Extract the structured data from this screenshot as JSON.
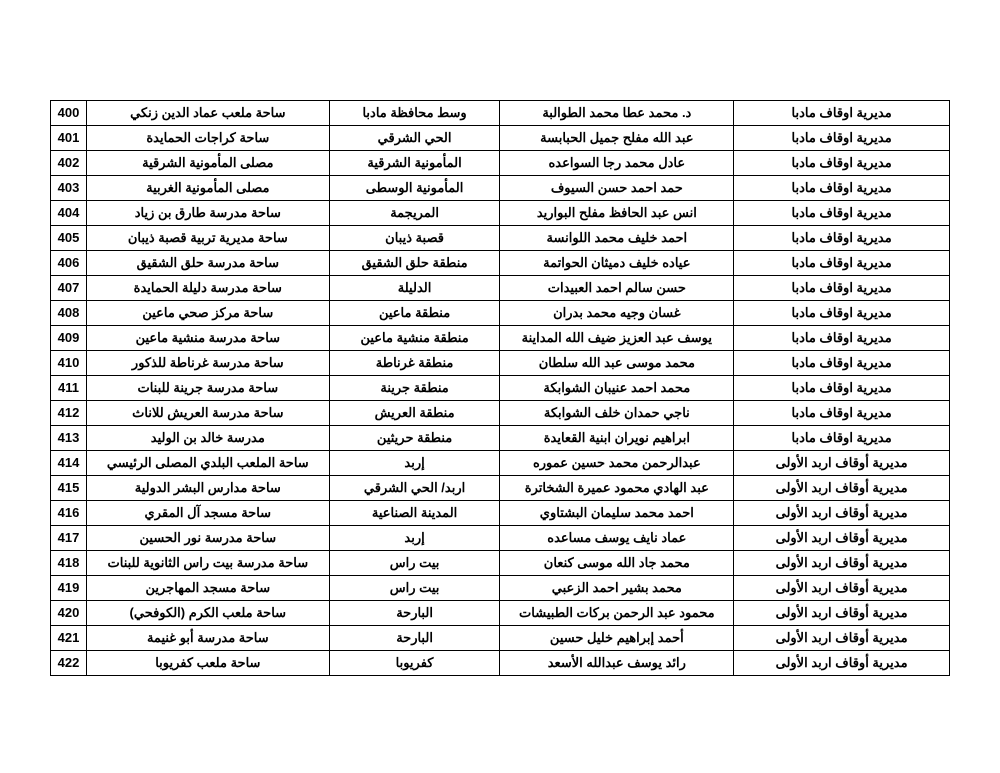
{
  "table": {
    "text_color": "#000000",
    "border_color": "#000000",
    "background_color": "#ffffff",
    "font_weight": "bold",
    "font_size_pt": 10,
    "column_widths_pct": [
      4,
      27,
      19,
      26,
      24
    ],
    "column_align": [
      "center",
      "center",
      "center",
      "center",
      "center"
    ],
    "rows": [
      {
        "id": "400",
        "c2": "ساحة ملعب عماد الدين زنكي",
        "c3": "وسط محافظة مادبا",
        "c4": "د. محمد عطا محمد الطوالبة",
        "c5": "مديرية اوقاف مادبا"
      },
      {
        "id": "401",
        "c2": "ساحة كراجات الحمايدة",
        "c3": "الحي الشرقي",
        "c4": "عبد الله مفلح  جميل الحبابسة",
        "c5": "مديرية اوقاف مادبا"
      },
      {
        "id": "402",
        "c2": "مصلى المأمونية الشرقية",
        "c3": "المأمونية الشرقية",
        "c4": "عادل محمد رجا السواعده",
        "c5": "مديرية اوقاف مادبا"
      },
      {
        "id": "403",
        "c2": "مصلى المأمونية الغربية",
        "c3": "المأمونية الوسطى",
        "c4": "حمد احمد حسن السيوف",
        "c5": "مديرية اوقاف مادبا"
      },
      {
        "id": "404",
        "c2": "ساحة مدرسة طارق بن زياد",
        "c3": "المريجمة",
        "c4": "انس عبد الحافظ  مفلح البواريد",
        "c5": "مديرية اوقاف مادبا"
      },
      {
        "id": "405",
        "c2": "ساحة مديرية تربية قصبة ذيبان",
        "c3": "قصبة ذيبان",
        "c4": "احمد خليف محمد اللوانسة",
        "c5": "مديرية اوقاف مادبا"
      },
      {
        "id": "406",
        "c2": "ساحة مدرسة حلق الشقيق",
        "c3": "منطقة حلق الشقيق",
        "c4": "عياده خليف دميثان الحواتمة",
        "c5": "مديرية اوقاف مادبا"
      },
      {
        "id": "407",
        "c2": "ساحة مدرسة دليلة الحمايدة",
        "c3": "الدليلة",
        "c4": "حسن سالم احمد العبيدات",
        "c5": "مديرية اوقاف مادبا"
      },
      {
        "id": "408",
        "c2": "ساحة مركز صحي ماعين",
        "c3": "منطقة ماعين",
        "c4": "غسان وجيه محمد بدران",
        "c5": "مديرية اوقاف مادبا"
      },
      {
        "id": "409",
        "c2": "ساحة مدرسة منشية ماعين",
        "c3": "منطقة منشية ماعين",
        "c4": "يوسف عبد العزيز ضيف الله المداينة",
        "c5": "مديرية اوقاف مادبا"
      },
      {
        "id": "410",
        "c2": "ساحة مدرسة غرناطة للذكور",
        "c3": "منطقة غرناطة",
        "c4": "محمد موسى  عبد الله سلطان",
        "c5": "مديرية اوقاف مادبا"
      },
      {
        "id": "411",
        "c2": "ساحة مدرسة جرينة للبنات",
        "c3": "منطقة جرينة",
        "c4": "محمد احمد عنيبان الشوابكة",
        "c5": "مديرية اوقاف مادبا"
      },
      {
        "id": "412",
        "c2": "ساحة مدرسة العريش للاناث",
        "c3": "منطقة العريش",
        "c4": "ناجي حمدان خلف الشوابكة",
        "c5": "مديرية اوقاف مادبا"
      },
      {
        "id": "413",
        "c2": "مدرسة خالد بن الوليد",
        "c3": "منطقة حريثين",
        "c4": "ابراهيم نويران ابنية القعايدة",
        "c5": "مديرية اوقاف مادبا"
      },
      {
        "id": "414",
        "c2": "ساحة الملعب البلدي المصلى الرئيسي",
        "c3": "إربد",
        "c4": "عبدالرحمن محمد حسين عموره",
        "c5": "مديرية أوقاف اربد الأولى"
      },
      {
        "id": "415",
        "c2": "ساحة مدارس البشر الدولية",
        "c3": "اربد/ الحي الشرقي",
        "c4": "عبد الهادي محمود عميرة الشخاترة",
        "c5": "مديرية أوقاف اربد الأولى"
      },
      {
        "id": "416",
        "c2": "ساحة مسجد آل المقري",
        "c3": "المدينة الصناعية",
        "c4": "احمد محمد سليمان البشتاوي",
        "c5": "مديرية أوقاف اربد الأولى"
      },
      {
        "id": "417",
        "c2": "ساحة مدرسة نور الحسين",
        "c3": "إربد",
        "c4": "عماد نايف يوسف مساعده",
        "c5": "مديرية أوقاف اربد الأولى"
      },
      {
        "id": "418",
        "c2": "ساحة مدرسة بيت راس الثانوية للبنات",
        "c3": "بيت راس",
        "c4": "محمد جاد الله موسى كنعان",
        "c5": "مديرية أوقاف اربد الأولى"
      },
      {
        "id": "419",
        "c2": "ساحة مسجد المهاجرين",
        "c3": "بيت راس",
        "c4": "محمد بشير احمد الزعبي",
        "c5": "مديرية أوقاف اربد الأولى"
      },
      {
        "id": "420",
        "c2": "ساحة ملعب الكرم (الكوفحي)",
        "c3": "البارحة",
        "c4": "محمود عبد الرحمن بركات الطبيشات",
        "c5": "مديرية أوقاف اربد الأولى"
      },
      {
        "id": "421",
        "c2": "ساحة مدرسة أبو غنيمة",
        "c3": "البارحة",
        "c4": "أحمد إبراهيم خليل حسين",
        "c5": "مديرية أوقاف اربد الأولى"
      },
      {
        "id": "422",
        "c2": "ساحة ملعب كفريوبا",
        "c3": "كفريوبا",
        "c4": "رائد يوسف عبدالله الأسعد",
        "c5": "مديرية أوقاف اربد الأولى"
      }
    ]
  }
}
